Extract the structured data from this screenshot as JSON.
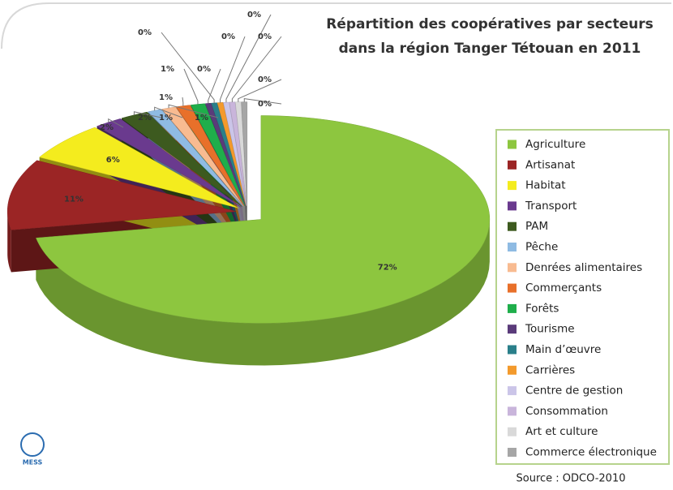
{
  "chart_data": {
    "type": "pie",
    "title": [
      "Répartition  des coopératives par secteurs",
      "dans la région Tanger Tétouan en 2011"
    ],
    "categories": [
      "Agriculture",
      "Artisanat",
      "Habitat",
      "Transport",
      "PAM",
      "Pêche",
      "Denrées alimentaires",
      "Commerçants",
      "Forêts",
      "Tourisme",
      "Main d’œuvre",
      "Carrières",
      "Centre de gestion",
      "Consommation",
      "Art et culture",
      "Commerce électronique"
    ],
    "values": [
      72,
      11,
      6,
      2,
      2,
      1,
      1,
      1,
      1,
      0.4,
      0.4,
      0.4,
      0.4,
      0.4,
      0.4,
      0.4
    ],
    "value_labels": [
      "72%",
      "11%",
      "6%",
      "2%",
      "2%",
      "1%",
      "1%",
      "1%",
      "1%",
      "0%",
      "0%",
      "0%",
      "0%",
      "0%",
      "0%",
      "0%"
    ],
    "colors": [
      "#8dc63f",
      "#9b2525",
      "#f4ec1e",
      "#6a3a8e",
      "#3d5a1f",
      "#8fbbe3",
      "#f8bb91",
      "#e8702a",
      "#1fae4b",
      "#5a3b7a",
      "#2a7f8a",
      "#f39a2c",
      "#cbc5e8",
      "#c9b5db",
      "#d9d9d9",
      "#a6a6a6"
    ],
    "legend": "right",
    "source": "Source : ODCO-2010",
    "logo": "MESS"
  }
}
